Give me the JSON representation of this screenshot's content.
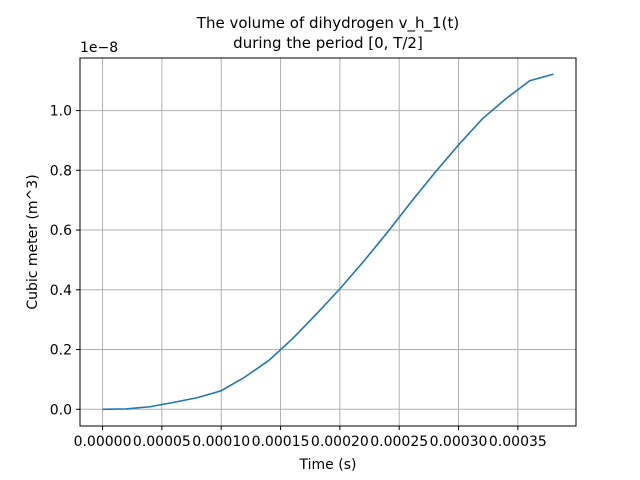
{
  "chart_data": {
    "type": "line",
    "title_line1": "The volume of dihydrogen v_h_1(t)",
    "title_line2": "during the period [0, T/2]",
    "xlabel": "Time (s)",
    "ylabel": "Cubic meter (m^3)",
    "y_offset_label": "1e−8",
    "xlim": [
      -1.9e-05,
      0.000399
    ],
    "ylim": [
      -0.056,
      1.176
    ],
    "x_ticks": [
      0.0,
      5e-05,
      0.0001,
      0.00015,
      0.0002,
      0.00025,
      0.0003,
      0.00035
    ],
    "x_tick_labels": [
      "0.00000",
      "0.00005",
      "0.00010",
      "0.00015",
      "0.00020",
      "0.00025",
      "0.00030",
      "0.00035"
    ],
    "y_ticks": [
      0.0,
      0.2,
      0.4,
      0.6,
      0.8,
      1.0
    ],
    "y_tick_labels": [
      "0.0",
      "0.2",
      "0.4",
      "0.6",
      "0.8",
      "1.0"
    ],
    "grid": true,
    "line_color": "#1f77b4",
    "series": [
      {
        "x": [
          0.0,
          2e-05,
          4e-05,
          6e-05,
          8e-05,
          0.0001,
          0.00012,
          0.00014,
          0.00016,
          0.00018,
          0.0002,
          0.00022,
          0.00024,
          0.00026,
          0.00028,
          0.0003,
          0.00032,
          0.00034,
          0.00036,
          0.00038
        ],
        "values": [
          0.0,
          0.0013,
          0.0084,
          0.023,
          0.039,
          0.062,
          0.108,
          0.163,
          0.236,
          0.318,
          0.403,
          0.495,
          0.592,
          0.694,
          0.792,
          0.885,
          0.972,
          1.04,
          1.1,
          1.122
        ]
      }
    ]
  }
}
